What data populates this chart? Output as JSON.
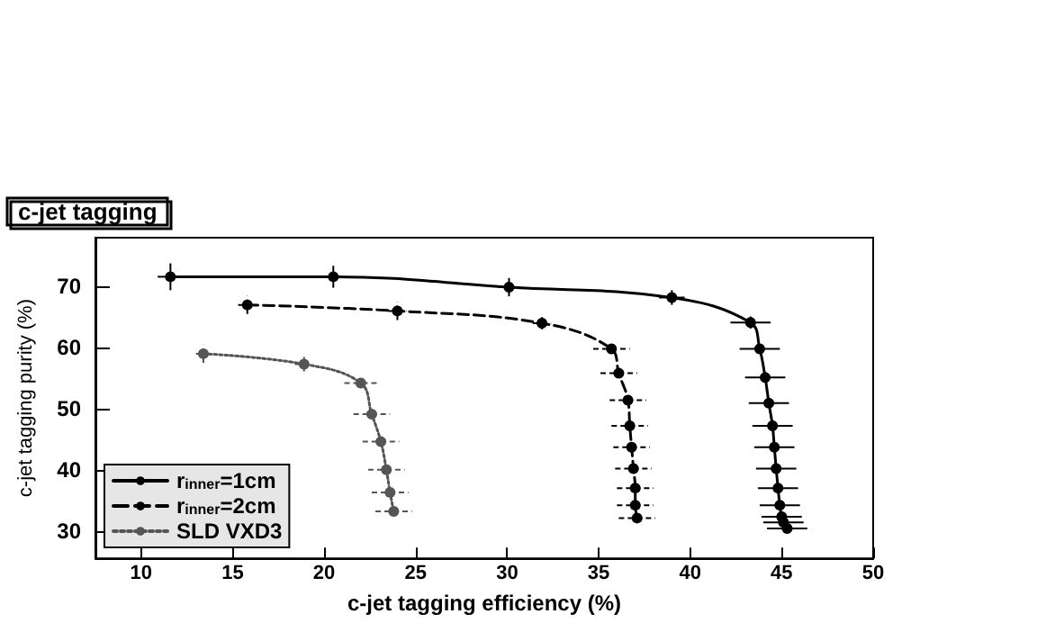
{
  "chart_data": {
    "type": "line",
    "title": "c-jet tagging",
    "xlabel": "c-jet tagging efficiency (%)",
    "ylabel": "c-jet tagging purity (%)",
    "xlim": [
      7.5,
      50
    ],
    "xticks": [
      10,
      15,
      20,
      25,
      30,
      35,
      40,
      45,
      50
    ],
    "ylim": [
      25.5,
      78
    ],
    "yticks": [
      30,
      40,
      50,
      60,
      70
    ],
    "grid": false,
    "legend": "bottom left",
    "marker": "circle",
    "series": [
      {
        "name": "r$_{inner}$=1cm",
        "color": "#000000",
        "line_style": "solid",
        "x": [
          11.6,
          20.5,
          30.1,
          39.0,
          43.3,
          43.8,
          44.1,
          44.3,
          44.5,
          44.6,
          44.7,
          44.8,
          44.9,
          45.0,
          45.1,
          45.3
        ],
        "values": [
          71.6,
          71.6,
          69.9,
          68.2,
          64.1,
          59.8,
          55.1,
          50.9,
          47.2,
          43.7,
          40.2,
          37.0,
          34.2,
          32.3,
          31.4,
          30.4
        ],
        "xerrors": [
          0.7,
          0.6,
          0.6,
          0.7,
          1.1,
          1.1,
          1.1,
          1.1,
          1.1,
          1.1,
          1.1,
          1.1,
          1.1,
          1.1,
          1.1,
          1.1
        ],
        "errors": [
          2.2,
          1.8,
          1.5,
          1.2,
          1.0,
          0.8,
          0.6,
          0.5,
          0.5,
          0.5,
          0.5,
          0.5,
          0.5,
          0.5,
          0.5,
          0.5
        ]
      },
      {
        "name": "r$_{inner}$=2cm",
        "color": "#000000",
        "line_style": "dashed",
        "x": [
          15.8,
          24.0,
          31.9,
          35.7,
          36.1,
          36.6,
          36.7,
          36.8,
          36.9,
          37.0,
          37.0,
          37.1
        ],
        "values": [
          67.0,
          66.0,
          64.0,
          59.8,
          55.8,
          51.4,
          47.2,
          43.7,
          40.2,
          37.0,
          34.2,
          32.1
        ],
        "xerrors": [
          0.5,
          0.5,
          0.5,
          1.0,
          1.0,
          1.0,
          1.0,
          1.0,
          1.0,
          1.0,
          1.0,
          1.0
        ],
        "errors": [
          1.5,
          1.5,
          1.0,
          0.8,
          0.6,
          0.5,
          0.5,
          0.5,
          0.5,
          0.5,
          0.5,
          0.5
        ]
      },
      {
        "name": "SLD VXD3",
        "color": "#555555",
        "line_style": "dotted",
        "x": [
          13.4,
          18.9,
          22.0,
          22.6,
          23.1,
          23.4,
          23.6,
          23.8
        ],
        "values": [
          59.0,
          57.3,
          54.2,
          49.1,
          44.6,
          40.0,
          36.3,
          33.2
        ],
        "xerrors": [
          0.4,
          0.5,
          0.9,
          1.0,
          1.0,
          1.0,
          1.0,
          1.0
        ],
        "errors": [
          1.5,
          1.2,
          0.8,
          0.6,
          0.5,
          0.5,
          0.5,
          0.5
        ]
      }
    ]
  }
}
